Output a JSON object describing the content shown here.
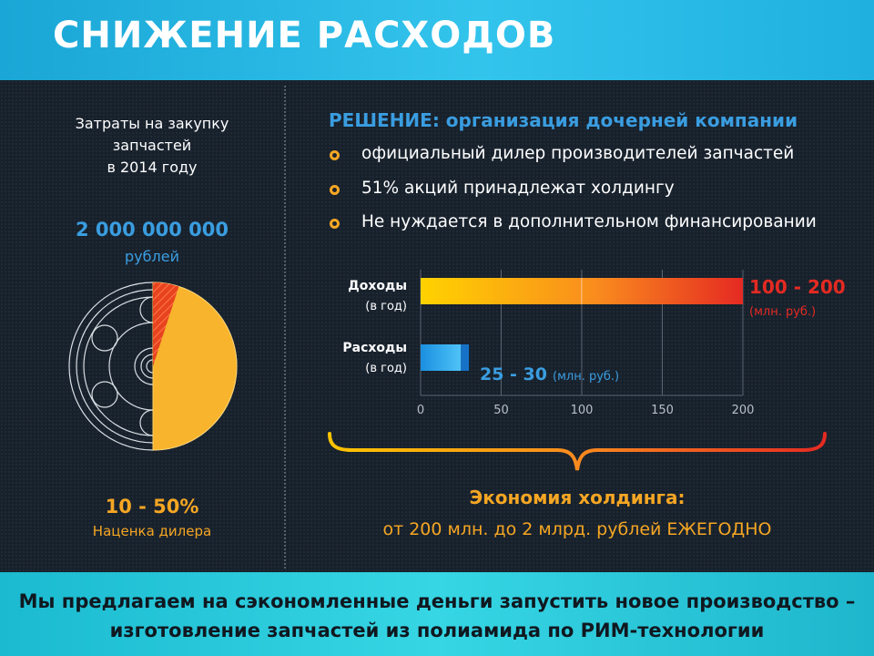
{
  "header": {
    "title": "СНИЖЕНИЕ РАСХОДОВ"
  },
  "left": {
    "caption": [
      "Затраты на закупку",
      "запчастей",
      "в 2014 году"
    ],
    "amount": "2 000 000 000",
    "amount_unit": "рублей",
    "markup_value": "10 - 50%",
    "markup_label": "Наценка дилера",
    "pie_fraction": 0.5,
    "pie_accent_fraction": 0.05
  },
  "solution": {
    "label": "РЕШЕНИЕ:",
    "title": "организация дочерней компании",
    "bullets": [
      "официальный дилер производителей запчастей",
      "51% акций принадлежат холдингу",
      "Не нуждается в дополнительном финансировании"
    ]
  },
  "chart_data": {
    "type": "bar",
    "orientation": "horizontal",
    "categories": [
      "Доходы",
      "Расходы"
    ],
    "category_sublabels": [
      "(в год)",
      "(в год)"
    ],
    "ranges": [
      [
        100,
        200
      ],
      [
        25,
        30
      ]
    ],
    "xlim": [
      0,
      200
    ],
    "xticks": [
      "0",
      "50",
      "100",
      "150",
      "200"
    ],
    "grid": true,
    "labels": {
      "income_value": "100 - 200",
      "income_unit": "(млн. руб.)",
      "expense_value": "25 - 30",
      "expense_unit": "(млн. руб.)"
    }
  },
  "economy": {
    "title": "Экономия холдинга:",
    "text": "от 200 млн. до 2 млрд. рублей ЕЖЕГОДНО"
  },
  "footer": {
    "line1": "Мы предлагаем на сэкономленные деньги запустить новое производство –",
    "line2": "изготовление запчастей из полиамида по РИМ-технологии"
  },
  "colors": {
    "accent_blue": "#3a9de0",
    "accent_orange": "#f5a623",
    "accent_red": "#e52a22",
    "pie_yellow": "#f7b42c"
  }
}
